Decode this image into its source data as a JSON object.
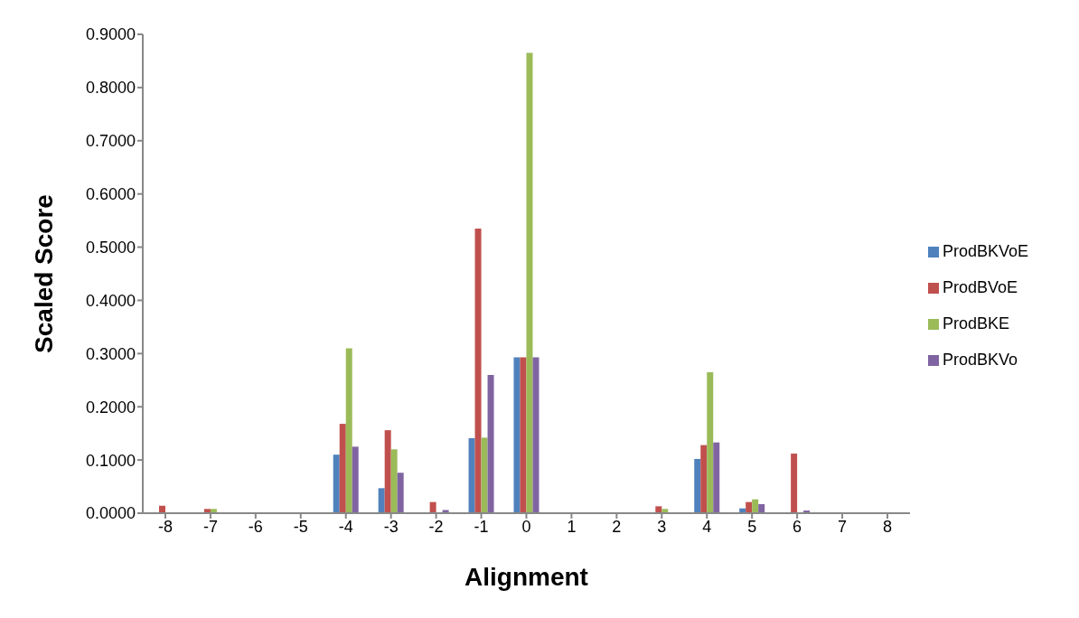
{
  "chart_data": {
    "type": "bar",
    "xlabel": "Alignment",
    "ylabel": "Scaled Score",
    "categories": [
      "-8",
      "-7",
      "-6",
      "-5",
      "-4",
      "-3",
      "-2",
      "-1",
      "0",
      "1",
      "2",
      "3",
      "4",
      "5",
      "6",
      "7",
      "8"
    ],
    "series": [
      {
        "name": "ProdBKVoE",
        "color": "#4f81bd",
        "values": [
          0,
          0,
          0,
          0,
          0.11,
          0.047,
          0,
          0.141,
          0.293,
          0,
          0,
          0,
          0.102,
          0.009,
          null,
          0,
          0
        ]
      },
      {
        "name": "ProdBVoE",
        "color": "#c0504d",
        "values": [
          0.014,
          0.008,
          0,
          0,
          0.168,
          0.156,
          0.021,
          0.535,
          0.293,
          0.001,
          0,
          0.013,
          0.128,
          0.021,
          0.112,
          0,
          0
        ]
      },
      {
        "name": "ProdBKE",
        "color": "#9bbb59",
        "values": [
          0,
          0.008,
          0,
          0,
          0.31,
          0.12,
          null,
          0.142,
          0.865,
          0.001,
          0,
          0.008,
          0.265,
          0.026,
          null,
          0,
          0
        ]
      },
      {
        "name": "ProdBKVo",
        "color": "#8064a2",
        "values": [
          0,
          0,
          0,
          0,
          0.125,
          0.076,
          0.006,
          0.26,
          0.293,
          0.001,
          null,
          0,
          0.133,
          0.017,
          0.005,
          0,
          0
        ]
      }
    ],
    "ylim": [
      0,
      0.9
    ],
    "yticks": [
      {
        "value": 0,
        "label": "0.0000"
      },
      {
        "value": 0.1,
        "label": "0.1000"
      },
      {
        "value": 0.2,
        "label": "0.2000"
      },
      {
        "value": 0.3,
        "label": "0.3000"
      },
      {
        "value": 0.4,
        "label": "0.4000"
      },
      {
        "value": 0.5,
        "label": "0.5000"
      },
      {
        "value": 0.6,
        "label": "0.6000"
      },
      {
        "value": 0.7,
        "label": "0.7000"
      },
      {
        "value": 0.8,
        "label": "0.8000"
      },
      {
        "value": 0.9,
        "label": "0.9000"
      }
    ],
    "grid": false,
    "legend": "right"
  }
}
